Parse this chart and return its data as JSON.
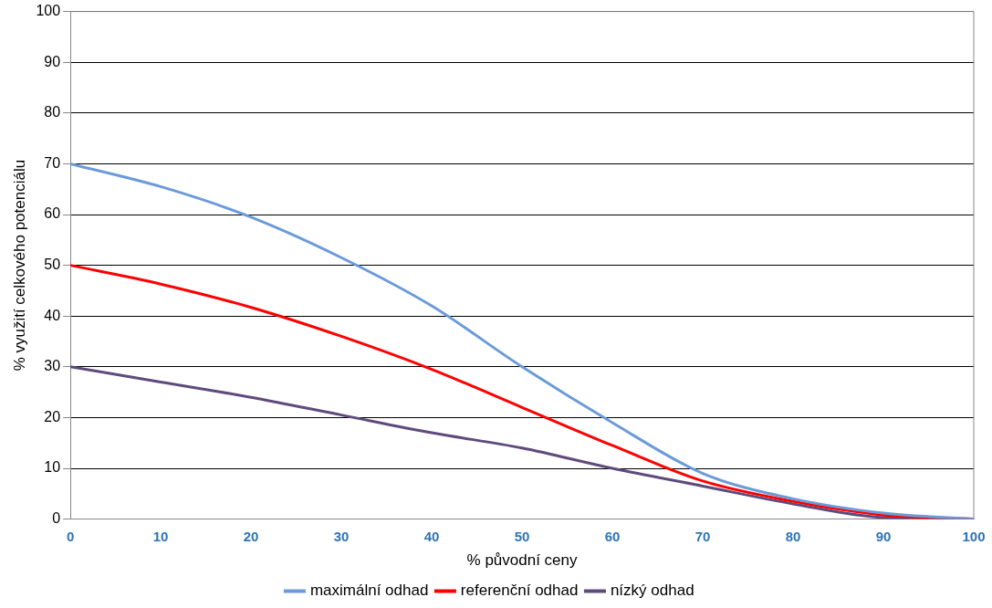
{
  "chart_data": {
    "type": "line",
    "xlabel": "% původní ceny",
    "ylabel": "% využití celkového potenciálu",
    "x": [
      0,
      10,
      20,
      30,
      40,
      50,
      60,
      70,
      80,
      90,
      100
    ],
    "series": [
      {
        "name": "maximální odhad",
        "color": "#6b9bd8",
        "values": [
          70,
          65.5,
          59.5,
          51.5,
          42,
          30,
          19,
          9,
          4,
          1.2,
          0
        ]
      },
      {
        "name": "referenční odhad",
        "color": "#ff0000",
        "values": [
          50,
          46.3,
          41.7,
          36,
          29.5,
          22,
          14.5,
          7.5,
          3.5,
          0.8,
          0
        ]
      },
      {
        "name": "nízký odhad",
        "color": "#5e4b7c",
        "values": [
          30,
          27,
          24,
          20.5,
          17,
          14,
          10,
          6.5,
          3,
          0.3,
          0
        ]
      }
    ],
    "xlim": [
      0,
      100
    ],
    "xticks": [
      0,
      10,
      20,
      30,
      40,
      50,
      60,
      70,
      80,
      90,
      100
    ],
    "ylim": [
      0,
      100
    ],
    "yticks": [
      0,
      10,
      20,
      30,
      40,
      50,
      60,
      70,
      80,
      90,
      100
    ],
    "grid": "y",
    "legend": "bottom",
    "marker": "none",
    "line_style": "solid"
  }
}
